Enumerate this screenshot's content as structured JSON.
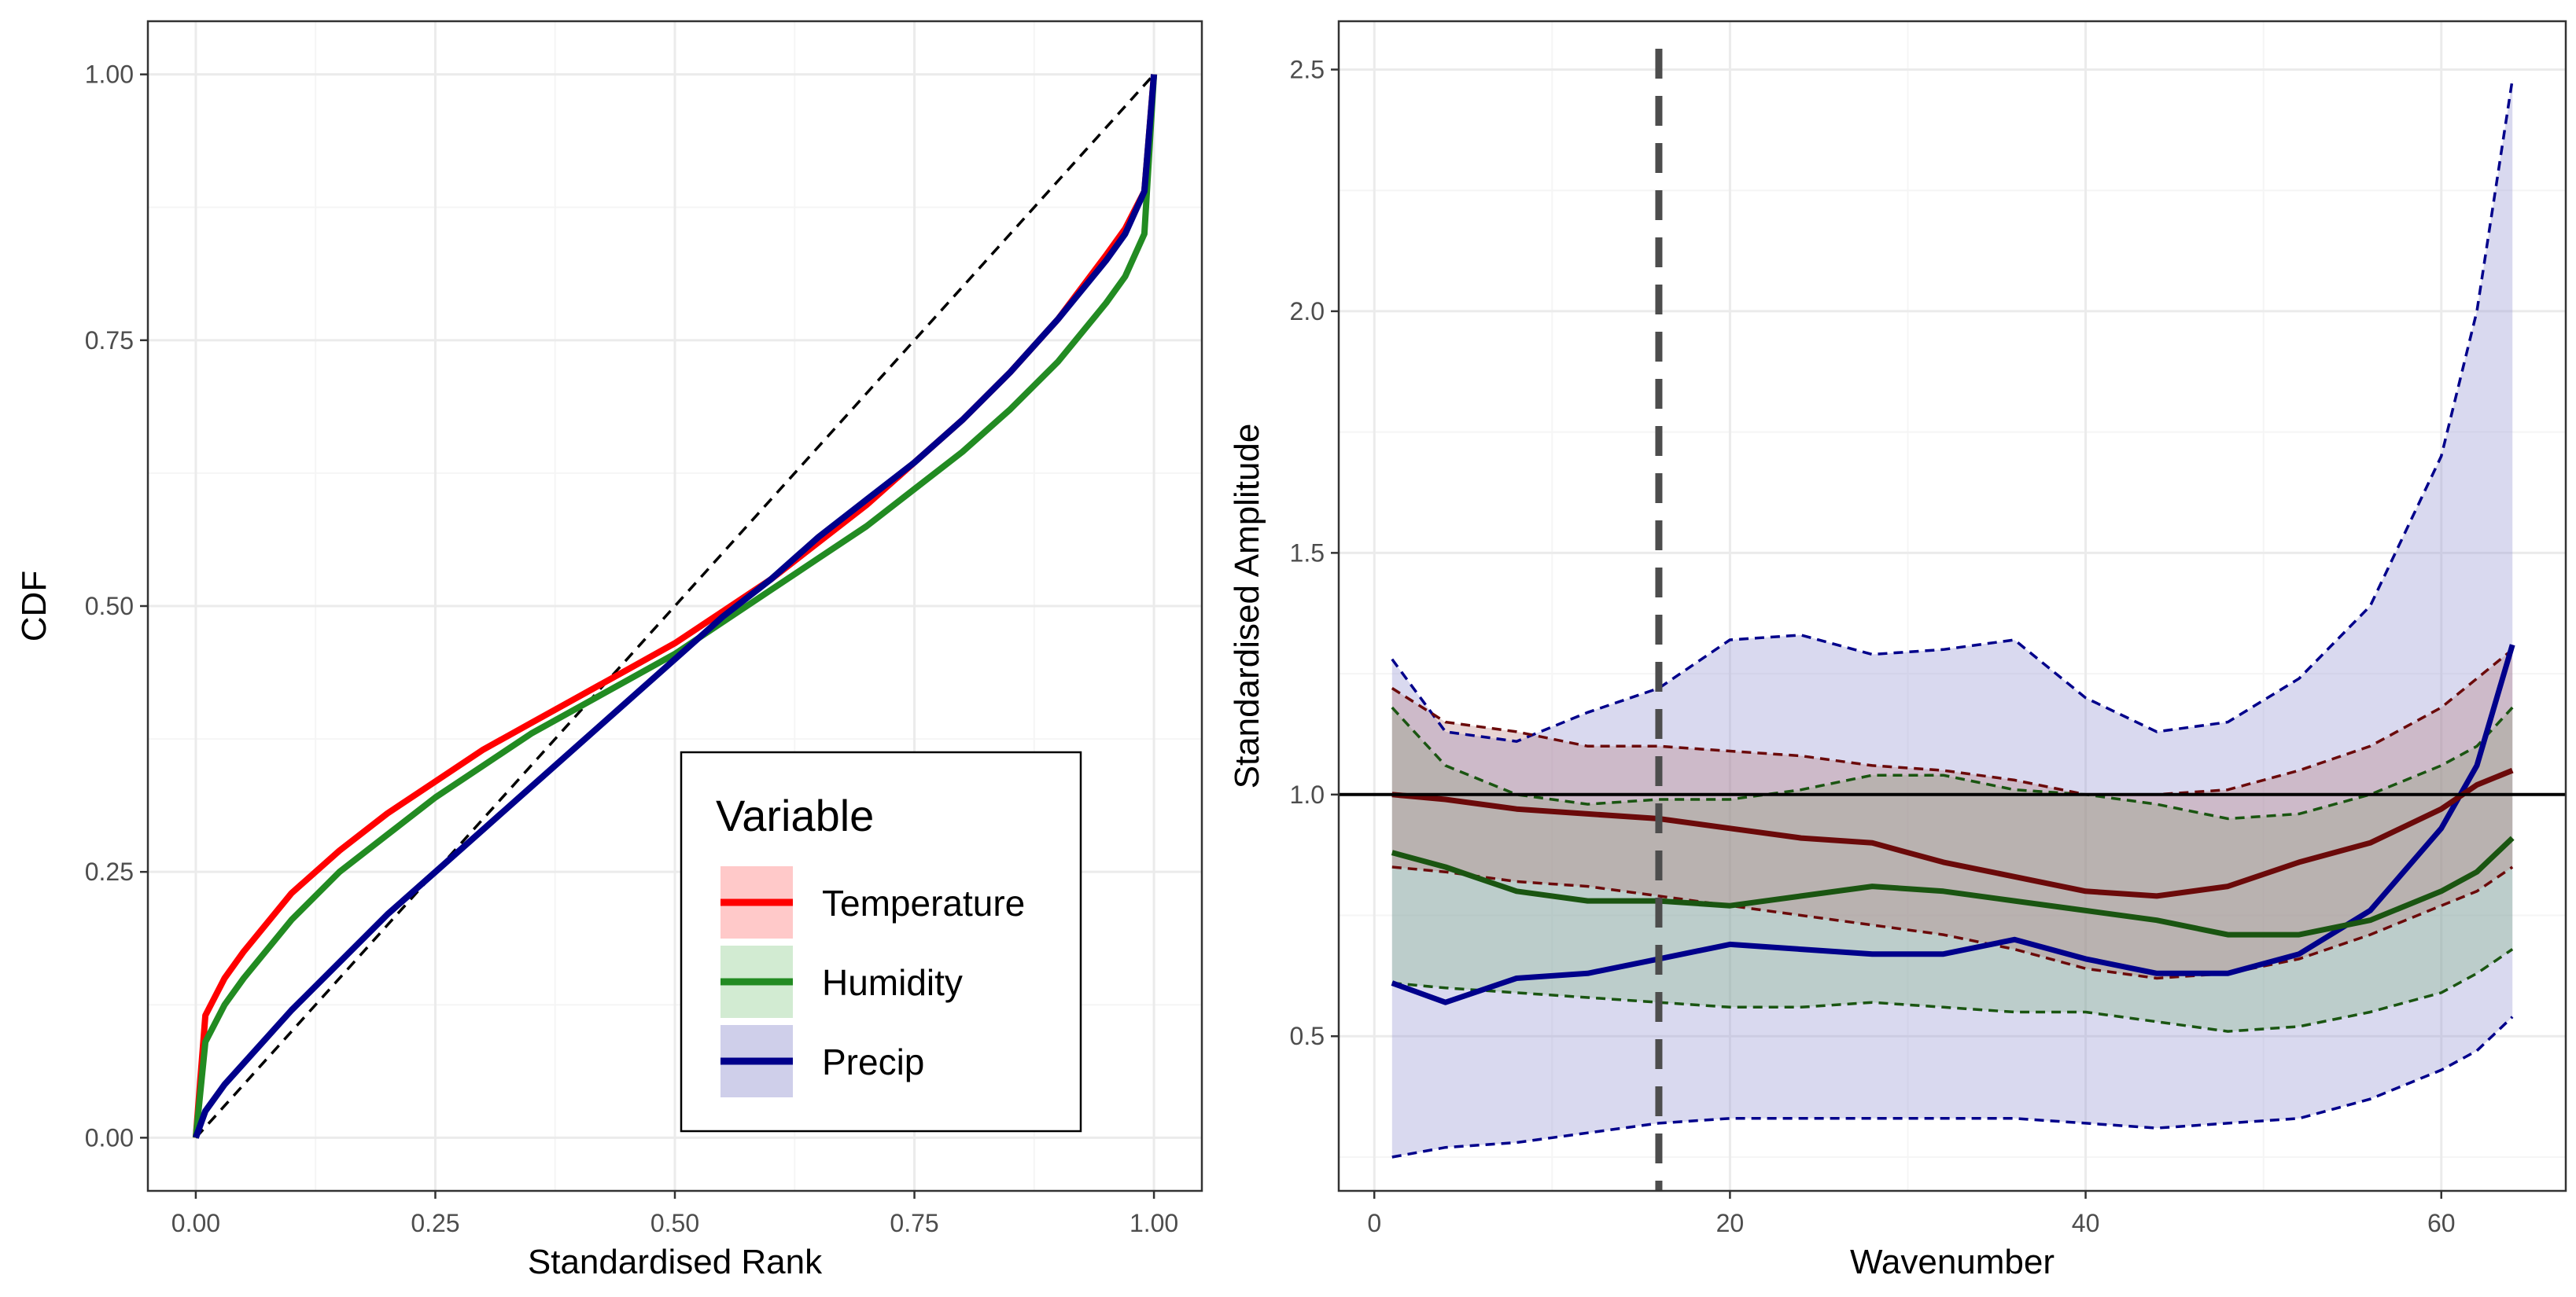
{
  "colors": {
    "temperature": "#ff0000",
    "humidity": "#228b22",
    "precip": "#00008b",
    "temperature_dark": "#6b0a0a",
    "humidity_dark": "#1a5511",
    "grid_major": "#ebebeb",
    "grid_minor": "#f5f5f5",
    "reference": "#4d4d4d"
  },
  "chart_data": [
    {
      "type": "line",
      "title": "",
      "xlabel": "Standardised Rank",
      "ylabel": "CDF",
      "xlim": [
        -0.05,
        1.05
      ],
      "ylim": [
        -0.05,
        1.05
      ],
      "x_ticks": [
        0.0,
        0.25,
        0.5,
        0.75,
        1.0
      ],
      "x_tick_labels": [
        "0.00",
        "0.25",
        "0.50",
        "0.75",
        "1.00"
      ],
      "y_ticks": [
        0.0,
        0.25,
        0.5,
        0.75,
        1.0
      ],
      "y_tick_labels": [
        "0.00",
        "0.25",
        "0.50",
        "0.75",
        "1.00"
      ],
      "grid": true,
      "legend": {
        "title": "Variable",
        "placement": "bottom-right",
        "entries": [
          "Temperature",
          "Humidity",
          "Precip"
        ]
      },
      "reference_line": {
        "x": [
          0,
          1
        ],
        "y": [
          0,
          1
        ],
        "style": "dashed"
      },
      "series": [
        {
          "name": "Temperature",
          "x": [
            0,
            0.01,
            0.03,
            0.05,
            0.1,
            0.15,
            0.2,
            0.25,
            0.3,
            0.35,
            0.4,
            0.45,
            0.5,
            0.55,
            0.6,
            0.65,
            0.7,
            0.75,
            0.8,
            0.85,
            0.9,
            0.95,
            0.97,
            0.99,
            1.0
          ],
          "y": [
            0,
            0.115,
            0.15,
            0.175,
            0.23,
            0.27,
            0.305,
            0.335,
            0.365,
            0.39,
            0.415,
            0.44,
            0.465,
            0.495,
            0.525,
            0.56,
            0.595,
            0.635,
            0.675,
            0.72,
            0.77,
            0.83,
            0.855,
            0.89,
            1.0
          ]
        },
        {
          "name": "Humidity",
          "x": [
            0,
            0.01,
            0.03,
            0.05,
            0.1,
            0.15,
            0.2,
            0.25,
            0.3,
            0.35,
            0.4,
            0.45,
            0.5,
            0.55,
            0.6,
            0.65,
            0.7,
            0.75,
            0.8,
            0.85,
            0.9,
            0.95,
            0.97,
            0.99,
            1.0
          ],
          "y": [
            0,
            0.09,
            0.125,
            0.15,
            0.205,
            0.25,
            0.285,
            0.32,
            0.35,
            0.38,
            0.405,
            0.43,
            0.455,
            0.485,
            0.515,
            0.545,
            0.575,
            0.61,
            0.645,
            0.685,
            0.73,
            0.785,
            0.81,
            0.85,
            1.0
          ]
        },
        {
          "name": "Precip",
          "x": [
            0,
            0.01,
            0.03,
            0.05,
            0.1,
            0.15,
            0.2,
            0.25,
            0.3,
            0.35,
            0.4,
            0.45,
            0.5,
            0.55,
            0.6,
            0.65,
            0.7,
            0.75,
            0.8,
            0.85,
            0.9,
            0.95,
            0.97,
            0.99,
            1.0
          ],
          "y": [
            0,
            0.025,
            0.05,
            0.07,
            0.12,
            0.165,
            0.21,
            0.25,
            0.29,
            0.33,
            0.37,
            0.41,
            0.45,
            0.49,
            0.525,
            0.565,
            0.6,
            0.635,
            0.675,
            0.72,
            0.77,
            0.825,
            0.85,
            0.89,
            1.0
          ]
        }
      ]
    },
    {
      "type": "line",
      "title": "",
      "xlabel": "Wavenumber",
      "ylabel": "Standardised Amplitude",
      "xlim": [
        -2,
        67
      ],
      "ylim": [
        0.18,
        2.6
      ],
      "x_ticks": [
        0,
        20,
        40,
        60
      ],
      "x_tick_labels": [
        "0",
        "20",
        "40",
        "60"
      ],
      "y_ticks": [
        0.5,
        1.0,
        1.5,
        2.0,
        2.5
      ],
      "y_tick_labels": [
        "0.5",
        "1.0",
        "1.5",
        "2.0",
        "2.5"
      ],
      "grid": true,
      "vertical_reference": {
        "x": 16,
        "style": "dashed"
      },
      "horizontal_reference": {
        "y": 1.0,
        "style": "solid"
      },
      "series": [
        {
          "name": "Temperature",
          "x": [
            1,
            4,
            8,
            12,
            16,
            20,
            24,
            28,
            32,
            36,
            40,
            44,
            48,
            52,
            56,
            60,
            62,
            64
          ],
          "mean": [
            1.0,
            0.99,
            0.97,
            0.96,
            0.95,
            0.93,
            0.91,
            0.9,
            0.86,
            0.83,
            0.8,
            0.79,
            0.81,
            0.86,
            0.9,
            0.97,
            1.02,
            1.05
          ],
          "upper": [
            1.22,
            1.15,
            1.13,
            1.1,
            1.1,
            1.09,
            1.08,
            1.06,
            1.05,
            1.03,
            1.0,
            1.0,
            1.01,
            1.05,
            1.1,
            1.18,
            1.24,
            1.3
          ],
          "lower": [
            0.85,
            0.84,
            0.82,
            0.81,
            0.79,
            0.77,
            0.75,
            0.73,
            0.71,
            0.68,
            0.64,
            0.62,
            0.63,
            0.66,
            0.71,
            0.77,
            0.8,
            0.85
          ]
        },
        {
          "name": "Humidity",
          "x": [
            1,
            4,
            8,
            12,
            16,
            20,
            24,
            28,
            32,
            36,
            40,
            44,
            48,
            52,
            56,
            60,
            62,
            64
          ],
          "mean": [
            0.88,
            0.85,
            0.8,
            0.78,
            0.78,
            0.77,
            0.79,
            0.81,
            0.8,
            0.78,
            0.76,
            0.74,
            0.71,
            0.71,
            0.74,
            0.8,
            0.84,
            0.91
          ],
          "upper": [
            1.18,
            1.06,
            1.0,
            0.98,
            0.99,
            0.99,
            1.01,
            1.04,
            1.04,
            1.01,
            1.0,
            0.98,
            0.95,
            0.96,
            1.0,
            1.06,
            1.1,
            1.18
          ],
          "lower": [
            0.61,
            0.6,
            0.59,
            0.58,
            0.57,
            0.56,
            0.56,
            0.57,
            0.56,
            0.55,
            0.55,
            0.53,
            0.51,
            0.52,
            0.55,
            0.59,
            0.63,
            0.68
          ]
        },
        {
          "name": "Precip",
          "x": [
            1,
            4,
            8,
            12,
            16,
            20,
            24,
            28,
            32,
            36,
            40,
            44,
            48,
            52,
            56,
            60,
            62,
            64
          ],
          "mean": [
            0.61,
            0.57,
            0.62,
            0.63,
            0.66,
            0.69,
            0.68,
            0.67,
            0.67,
            0.7,
            0.66,
            0.63,
            0.63,
            0.67,
            0.76,
            0.93,
            1.06,
            1.31
          ],
          "upper": [
            1.28,
            1.13,
            1.11,
            1.17,
            1.22,
            1.32,
            1.33,
            1.29,
            1.3,
            1.32,
            1.2,
            1.13,
            1.15,
            1.24,
            1.39,
            1.7,
            2.0,
            2.48
          ],
          "lower": [
            0.25,
            0.27,
            0.28,
            0.3,
            0.32,
            0.33,
            0.33,
            0.33,
            0.33,
            0.33,
            0.32,
            0.31,
            0.32,
            0.33,
            0.37,
            0.43,
            0.47,
            0.54
          ]
        }
      ]
    }
  ]
}
